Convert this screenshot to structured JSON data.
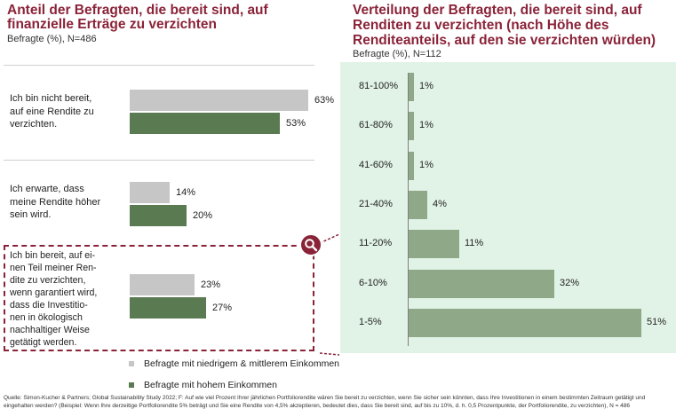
{
  "left": {
    "title_line1": "Anteil der Befragten, die bereit sind, auf",
    "title_line2": "finanzielle Erträge zu verzichten",
    "subtitle": "Befragte (%), N=486",
    "questions": [
      {
        "lines": [
          "Ich bin nicht bereit,",
          "auf eine Rendite zu",
          "verzichten."
        ]
      },
      {
        "lines": [
          "Ich erwarte, dass",
          "meine Rendite höher",
          "sein wird."
        ]
      },
      {
        "lines": [
          "Ich bin bereit, auf ei-",
          "nen Teil meiner Ren-",
          "dite zu verzichten,",
          "wenn garantiert wird,",
          "dass die Investitio-",
          "nen in ökologisch",
          "nachhaltiger Weise",
          "getätigt werden."
        ]
      }
    ]
  },
  "right": {
    "title_line1": "Verteilung der Befragten, die bereit sind, auf",
    "title_line2": "Renditen zu verzichten (nach Höhe des",
    "title_line3": "Renditeanteils, auf den sie verzichten würden)",
    "subtitle": "Befragte (%), N=112"
  },
  "legend": {
    "low_income": "Befragte mit niedrigem & mittlerem Einkommen",
    "high_income": "Befragte mit hohem Einkommen"
  },
  "footnote": "Quelle: Simon-Kucher & Partners; Global Sustainability Study 2022; F: Auf wie viel Prozent Ihrer jährlichen Portfoliorendite wären Sie bereit zu verzichten, wenn Sie sicher sein könnten, dass Ihre Investitionen in einem bestimmten Zeitraum getätigt und eingehalten werden? (Beispiel: Wenn Ihre derzeitige Portfoliorendite 5% beträgt und Sie eine Rendite von 4,5% akzeptieren, bedeutet dies, dass Sie bereit sind, auf bis zu 10%, d. h. 0,5 Prozentpunkte, der Portfoliorendite, zu verzichten), N = 486",
  "colors": {
    "title": "#8a2338",
    "gray_bar": "#c6c6c6",
    "dark_green_bar": "#5a7a51",
    "light_green_bar": "#8fa888",
    "panel_bg": "#e1f3e6"
  },
  "chart_data": [
    {
      "type": "bar",
      "orientation": "horizontal",
      "title": "Anteil der Befragten, die bereit sind, auf finanzielle Erträge zu verzichten",
      "ylabel": "Befragte (%), N=486",
      "categories": [
        "Ich bin nicht bereit, auf eine Rendite zu verzichten.",
        "Ich erwarte, dass meine Rendite höher sein wird.",
        "Ich bin bereit, auf einen Teil meiner Rendite zu verzichten, wenn garantiert wird, dass die Investitionen in ökologisch nachhaltiger Weise getätigt werden."
      ],
      "series": [
        {
          "name": "Befragte mit niedrigem & mittlerem Einkommen",
          "values": [
            63,
            14,
            23
          ],
          "labels": [
            "63%",
            "14%",
            "23%"
          ]
        },
        {
          "name": "Befragte mit hohem Einkommen",
          "values": [
            53,
            20,
            27
          ],
          "labels": [
            "53%",
            "20%",
            "27%"
          ]
        }
      ],
      "xlim": [
        0,
        63
      ],
      "legend": "bottom"
    },
    {
      "type": "bar",
      "orientation": "horizontal",
      "title": "Verteilung der Befragten, die bereit sind, auf Renditen zu verzichten (nach Höhe des Renditeanteils, auf den sie verzichten würden)",
      "ylabel": "Befragte (%), N=112",
      "categories": [
        "81-100%",
        "61-80%",
        "41-60%",
        "21-40%",
        "11-20%",
        "6-10%",
        "1-5%"
      ],
      "values": [
        1,
        1,
        1,
        4,
        11,
        32,
        51
      ],
      "labels": [
        "1%",
        "1%",
        "1%",
        "4%",
        "11%",
        "32%",
        "51%"
      ],
      "xlim": [
        0,
        51
      ]
    }
  ]
}
